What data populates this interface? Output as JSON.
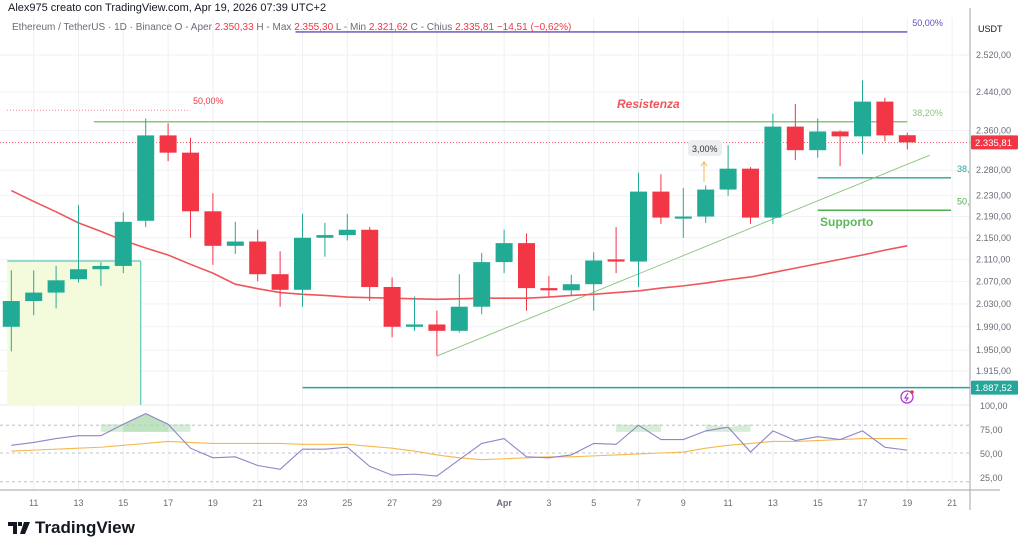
{
  "header": {
    "credit": "Alex975 creato con TradingView.com, Apr 19, 2026 07:39 UTC+2"
  },
  "legend": {
    "symbol": "Ethereum / TetherUS · 1D · Binance",
    "open_label": "O - Aper",
    "open": "2.350,33",
    "high_label": "H - Max",
    "high": "2.355,30",
    "low_label": "L - Min",
    "low": "2.321,62",
    "close_label": "C - Chius",
    "close": "2.335,81",
    "change": "−14,51 (−0,62%)"
  },
  "logo": {
    "text": "TradingView"
  },
  "colors": {
    "up": "#22ab94",
    "down": "#f23645",
    "ema": "#f0555a",
    "rsi": "#8f84c8",
    "rsi_ma": "#f5b84d",
    "resistance": "#8cc37e",
    "support": "#4caf50",
    "purple_level": "#5b4fbf"
  },
  "chart_data": {
    "type": "candlestick",
    "currency_label": "USDT",
    "y_scale": "log",
    "ylim": [
      1860,
      2580
    ],
    "grid": true,
    "price_ticks": [
      2520,
      2440,
      2360,
      2280,
      2230,
      2190,
      2150,
      2110,
      2070,
      2030,
      1990,
      1950,
      1915
    ],
    "x_ticks": [
      {
        "date": "2026-03-11",
        "label": "11"
      },
      {
        "date": "2026-03-13",
        "label": "13"
      },
      {
        "date": "2026-03-15",
        "label": "15"
      },
      {
        "date": "2026-03-17",
        "label": "17"
      },
      {
        "date": "2026-03-19",
        "label": "19"
      },
      {
        "date": "2026-03-21",
        "label": "21"
      },
      {
        "date": "2026-03-23",
        "label": "23"
      },
      {
        "date": "2026-03-25",
        "label": "25"
      },
      {
        "date": "2026-03-27",
        "label": "27"
      },
      {
        "date": "2026-03-29",
        "label": "29"
      },
      {
        "date": "2026-04-01",
        "label": "Apr"
      },
      {
        "date": "2026-04-03",
        "label": "3"
      },
      {
        "date": "2026-04-05",
        "label": "5"
      },
      {
        "date": "2026-04-07",
        "label": "7"
      },
      {
        "date": "2026-04-09",
        "label": "9"
      },
      {
        "date": "2026-04-11",
        "label": "11"
      },
      {
        "date": "2026-04-13",
        "label": "13"
      },
      {
        "date": "2026-04-15",
        "label": "15"
      },
      {
        "date": "2026-04-17",
        "label": "17"
      },
      {
        "date": "2026-04-19",
        "label": "19"
      },
      {
        "date": "2026-04-21",
        "label": "21"
      }
    ],
    "start_date": "2026-03-10",
    "candles": [
      {
        "o": 1990,
        "h": 2090,
        "l": 1948,
        "c": 2035
      },
      {
        "o": 2035,
        "h": 2090,
        "l": 2010,
        "c": 2050
      },
      {
        "o": 2050,
        "h": 2098,
        "l": 2022,
        "c": 2072
      },
      {
        "o": 2074,
        "h": 2212,
        "l": 2068,
        "c": 2092
      },
      {
        "o": 2092,
        "h": 2105,
        "l": 2062,
        "c": 2098
      },
      {
        "o": 2098,
        "h": 2198,
        "l": 2085,
        "c": 2180
      },
      {
        "o": 2182,
        "h": 2385,
        "l": 2170,
        "c": 2350
      },
      {
        "o": 2350,
        "h": 2375,
        "l": 2298,
        "c": 2315
      },
      {
        "o": 2315,
        "h": 2345,
        "l": 2150,
        "c": 2200
      },
      {
        "o": 2200,
        "h": 2235,
        "l": 2100,
        "c": 2135
      },
      {
        "o": 2135,
        "h": 2180,
        "l": 2120,
        "c": 2143
      },
      {
        "o": 2143,
        "h": 2165,
        "l": 2070,
        "c": 2083
      },
      {
        "o": 2083,
        "h": 2125,
        "l": 2025,
        "c": 2055
      },
      {
        "o": 2055,
        "h": 2195,
        "l": 2025,
        "c": 2150
      },
      {
        "o": 2150,
        "h": 2178,
        "l": 2115,
        "c": 2155
      },
      {
        "o": 2155,
        "h": 2195,
        "l": 2145,
        "c": 2165
      },
      {
        "o": 2165,
        "h": 2170,
        "l": 2035,
        "c": 2060
      },
      {
        "o": 2060,
        "h": 2077,
        "l": 1972,
        "c": 1990
      },
      {
        "o": 1990,
        "h": 2043,
        "l": 1983,
        "c": 1994
      },
      {
        "o": 1994,
        "h": 2018,
        "l": 1941,
        "c": 1983
      },
      {
        "o": 1983,
        "h": 2083,
        "l": 1980,
        "c": 2025
      },
      {
        "o": 2025,
        "h": 2122,
        "l": 2012,
        "c": 2105
      },
      {
        "o": 2105,
        "h": 2165,
        "l": 2085,
        "c": 2140
      },
      {
        "o": 2140,
        "h": 2158,
        "l": 2018,
        "c": 2058
      },
      {
        "o": 2058,
        "h": 2080,
        "l": 2042,
        "c": 2054
      },
      {
        "o": 2054,
        "h": 2082,
        "l": 2045,
        "c": 2065
      },
      {
        "o": 2065,
        "h": 2123,
        "l": 2018,
        "c": 2108
      },
      {
        "o": 2110,
        "h": 2170,
        "l": 2085,
        "c": 2106
      },
      {
        "o": 2106,
        "h": 2275,
        "l": 2060,
        "c": 2238
      },
      {
        "o": 2238,
        "h": 2272,
        "l": 2176,
        "c": 2188
      },
      {
        "o": 2186,
        "h": 2245,
        "l": 2150,
        "c": 2190
      },
      {
        "o": 2190,
        "h": 2250,
        "l": 2178,
        "c": 2242
      },
      {
        "o": 2242,
        "h": 2330,
        "l": 2230,
        "c": 2283
      },
      {
        "o": 2283,
        "h": 2286,
        "l": 2176,
        "c": 2188
      },
      {
        "o": 2188,
        "h": 2395,
        "l": 2176,
        "c": 2368
      },
      {
        "o": 2368,
        "h": 2415,
        "l": 2300,
        "c": 2320
      },
      {
        "o": 2320,
        "h": 2385,
        "l": 2305,
        "c": 2358
      },
      {
        "o": 2358,
        "h": 2360,
        "l": 2288,
        "c": 2348
      },
      {
        "o": 2348,
        "h": 2465,
        "l": 2312,
        "c": 2420
      },
      {
        "o": 2420,
        "h": 2428,
        "l": 2338,
        "c": 2350
      },
      {
        "o": 2350.33,
        "h": 2355.3,
        "l": 2321.62,
        "c": 2335.81
      }
    ],
    "ema": [
      2240,
      2219,
      2199,
      2178,
      2162,
      2145,
      2131,
      2118,
      2101,
      2085,
      2065,
      2057,
      2050,
      2047,
      2045,
      2042,
      2041,
      2040,
      2039,
      2038,
      2039,
      2040,
      2040,
      2040,
      2042,
      2045,
      2047,
      2050,
      2053,
      2058,
      2062,
      2067,
      2073,
      2078,
      2086,
      2094,
      2102,
      2110,
      2118,
      2127,
      2135
    ],
    "last_price": {
      "value": 2335.81,
      "label": "2.335,81"
    },
    "level_price": {
      "value": 1887.52,
      "label": "1.887,52",
      "from": "2026-03-23"
    },
    "levels": [
      {
        "name": "fib-50-top",
        "price": 2571,
        "from": "2026-03-23",
        "to": "2026-04-19",
        "label": "50,00%",
        "color": "#5b4fbf"
      },
      {
        "name": "fib-50-left",
        "price": 2402,
        "from": "2026-03-10",
        "to": "2026-03-18",
        "label": "50,00%",
        "color": "#f23645",
        "dotted": true
      },
      {
        "name": "resistance",
        "price": 2378,
        "from": "2026-03-14",
        "to": "2026-04-19",
        "label": "38,20%",
        "color": "#8cc37e"
      },
      {
        "name": "support-38",
        "price": 2265,
        "from": "2026-04-15",
        "to": "2026-04-21",
        "label": "38,",
        "color": "#26a69a"
      },
      {
        "name": "support-50",
        "price": 2202,
        "from": "2026-04-15",
        "to": "2026-04-21",
        "label": "50,",
        "color": "#4caf50"
      }
    ],
    "trendline": {
      "from": {
        "date": "2026-03-29",
        "price": 1940
      },
      "to": {
        "date": "2026-04-20",
        "price": 2310
      }
    },
    "box": {
      "from": "2026-03-10",
      "to": "2026-03-16",
      "top": 2107,
      "bottom": 1859
    },
    "annotations": {
      "resistance_text": "Resistenza",
      "support_text": "Supporto",
      "pct_badge": "3,00%"
    },
    "rsi": {
      "ticks": [
        {
          "v": 100,
          "label": "100,00"
        },
        {
          "v": 75,
          "label": "75,00"
        },
        {
          "v": 50,
          "label": "50,00"
        },
        {
          "v": 25,
          "label": "25,00"
        }
      ],
      "bands": [
        80,
        50,
        20
      ],
      "values": [
        58,
        61,
        65,
        68,
        68,
        80,
        91,
        80,
        55,
        45,
        46,
        37,
        33,
        54,
        54,
        56,
        36,
        27,
        28,
        26,
        43,
        60,
        65,
        46,
        45,
        48,
        60,
        59,
        79,
        64,
        64,
        73,
        77,
        51,
        73,
        63,
        67,
        64,
        73,
        56,
        53
      ],
      "ma": [
        52,
        53,
        54,
        55,
        56,
        58,
        60,
        62,
        61,
        60,
        60,
        60,
        60,
        59,
        59,
        59,
        57,
        55,
        52,
        48,
        45,
        43,
        44,
        45,
        46,
        46,
        47,
        48,
        49,
        50,
        51,
        55,
        58,
        60,
        62,
        62,
        63,
        64,
        65,
        65,
        65
      ]
    }
  }
}
